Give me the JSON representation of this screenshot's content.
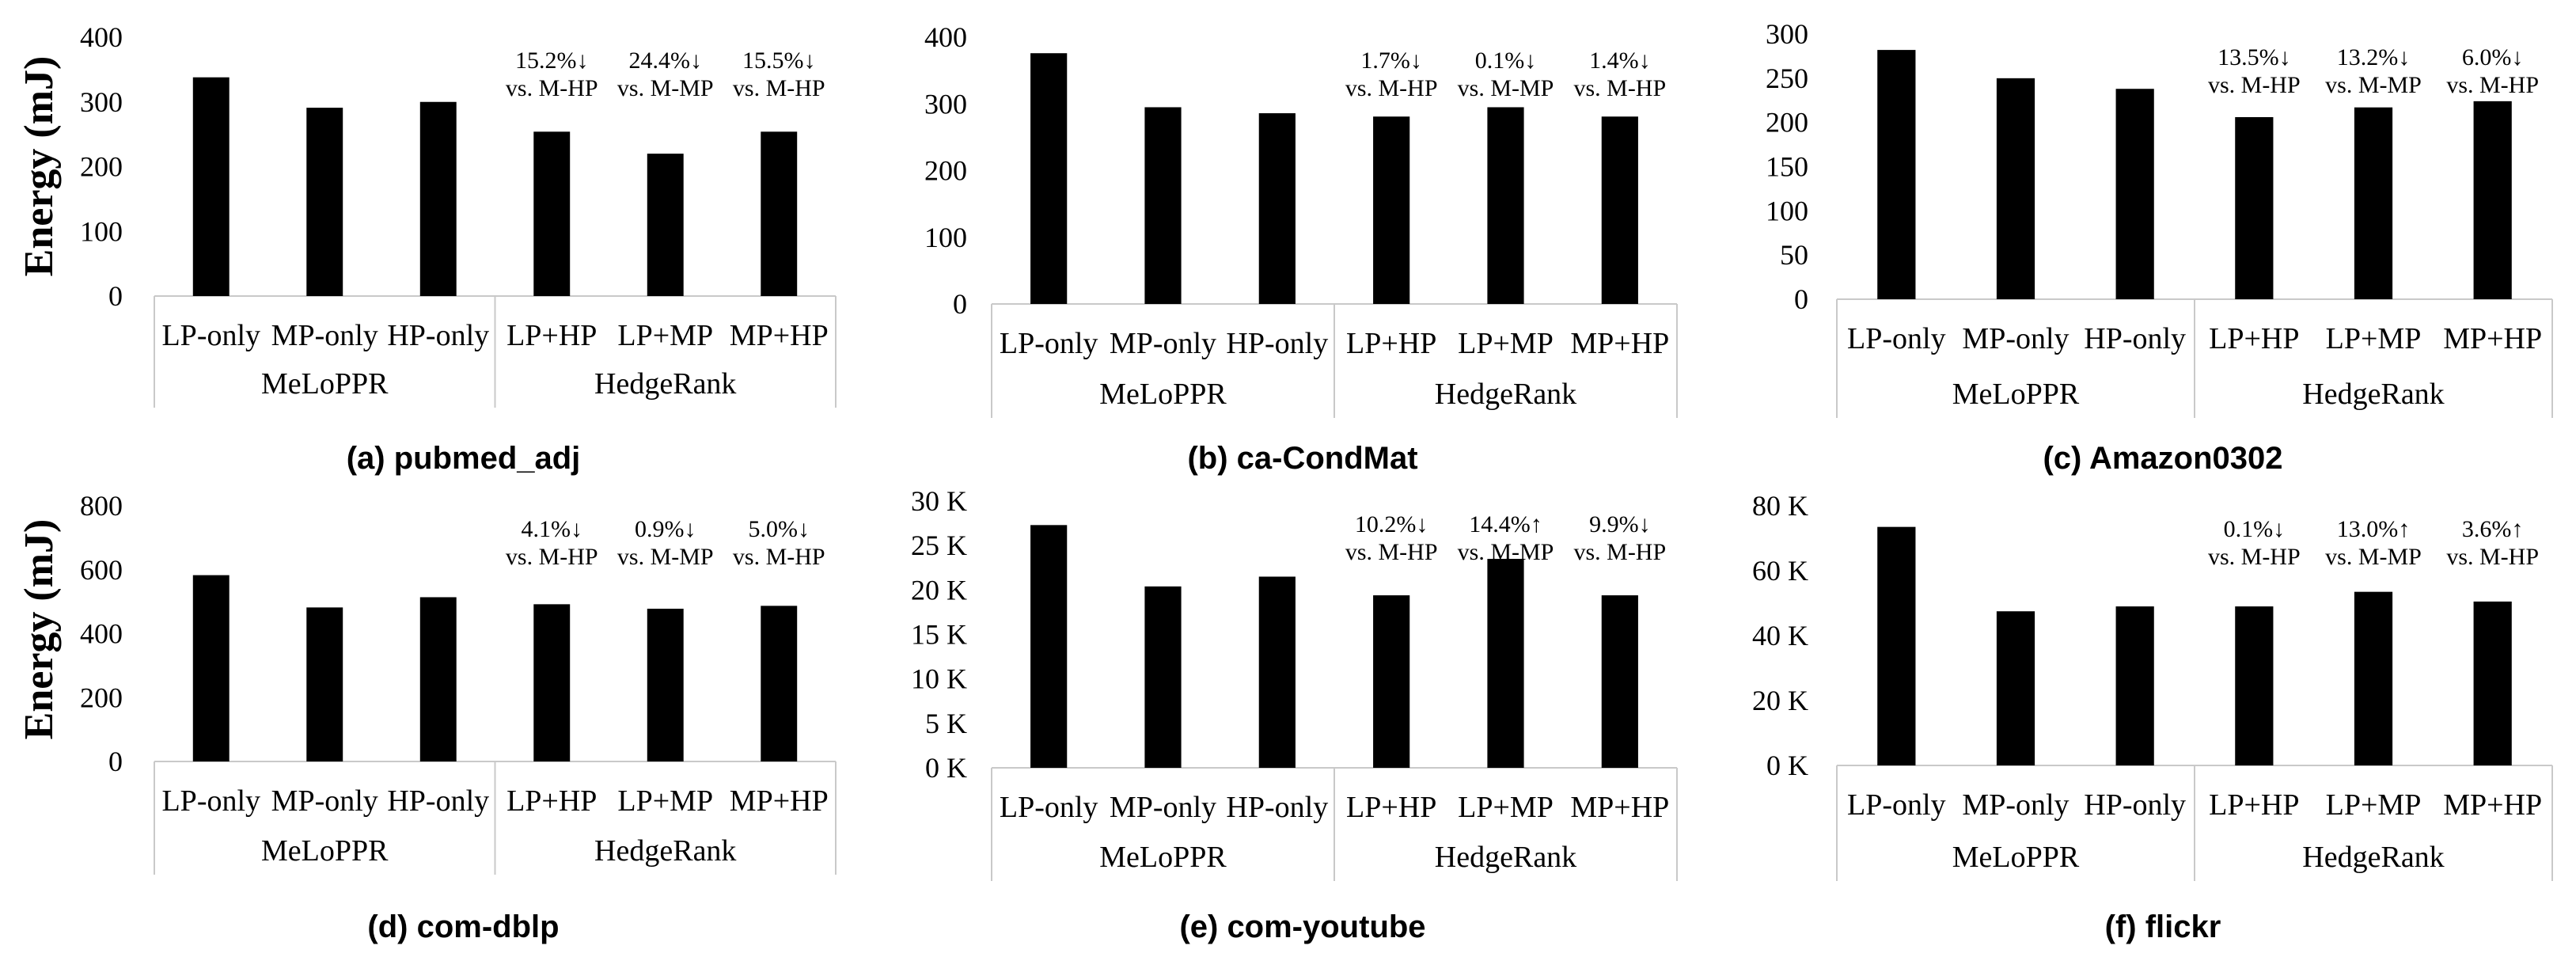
{
  "y_axis_label": "Energy (mJ)",
  "chart_data": [
    {
      "type": "bar",
      "caption": "(a) pubmed_adj",
      "categories": [
        "LP-only",
        "MP-only",
        "HP-only",
        "LP+HP",
        "LP+MP",
        "MP+HP"
      ],
      "groups": [
        {
          "label": "MeLoPPR",
          "count": 3
        },
        {
          "label": "HedgeRank",
          "count": 3
        }
      ],
      "values": [
        338,
        291,
        300,
        254,
        220,
        254
      ],
      "annotations": [
        {
          "index": 3,
          "line1": "15.2%↓",
          "line2": "vs. M-HP"
        },
        {
          "index": 4,
          "line1": "24.4%↓",
          "line2": "vs. M-MP"
        },
        {
          "index": 5,
          "line1": "15.5%↓",
          "line2": "vs. M-HP"
        }
      ],
      "ylim": [
        0,
        400
      ],
      "yticks": [
        0,
        100,
        200,
        300,
        400
      ],
      "ytick_labels": [
        "0",
        "100",
        "200",
        "300",
        "400"
      ],
      "gridlines": false
    },
    {
      "type": "bar",
      "caption": "(b) ca-CondMat",
      "categories": [
        "LP-only",
        "MP-only",
        "HP-only",
        "LP+HP",
        "LP+MP",
        "MP+HP"
      ],
      "groups": [
        {
          "label": "MeLoPPR",
          "count": 3
        },
        {
          "label": "HedgeRank",
          "count": 3
        }
      ],
      "values": [
        376,
        295,
        286,
        281,
        295,
        281
      ],
      "annotations": [
        {
          "index": 3,
          "line1": "1.7%↓",
          "line2": "vs. M-HP"
        },
        {
          "index": 4,
          "line1": "0.1%↓",
          "line2": "vs. M-MP"
        },
        {
          "index": 5,
          "line1": "1.4%↓",
          "line2": "vs. M-HP"
        }
      ],
      "ylim": [
        0,
        400
      ],
      "yticks": [
        0,
        100,
        200,
        300,
        400
      ],
      "ytick_labels": [
        "0",
        "100",
        "200",
        "300",
        "400"
      ],
      "gridlines": false
    },
    {
      "type": "bar",
      "caption": "(c) Amazon0302",
      "categories": [
        "LP-only",
        "MP-only",
        "HP-only",
        "LP+HP",
        "LP+MP",
        "MP+HP"
      ],
      "groups": [
        {
          "label": "MeLoPPR",
          "count": 3
        },
        {
          "label": "HedgeRank",
          "count": 3
        }
      ],
      "values": [
        282,
        250,
        238,
        206,
        217,
        224
      ],
      "annotations": [
        {
          "index": 3,
          "line1": "13.5%↓",
          "line2": "vs. M-HP"
        },
        {
          "index": 4,
          "line1": "13.2%↓",
          "line2": "vs. M-MP"
        },
        {
          "index": 5,
          "line1": "6.0%↓",
          "line2": "vs. M-HP"
        }
      ],
      "ylim": [
        0,
        300
      ],
      "yticks": [
        0,
        50,
        100,
        150,
        200,
        250,
        300
      ],
      "ytick_labels": [
        "0",
        "50",
        "100",
        "150",
        "200",
        "250",
        "300"
      ],
      "gridlines": false
    },
    {
      "type": "bar",
      "caption": "(d) com-dblp",
      "categories": [
        "LP-only",
        "MP-only",
        "HP-only",
        "LP+HP",
        "LP+MP",
        "MP+HP"
      ],
      "groups": [
        {
          "label": "MeLoPPR",
          "count": 3
        },
        {
          "label": "HedgeRank",
          "count": 3
        }
      ],
      "values": [
        583,
        482,
        514,
        492,
        478,
        487
      ],
      "annotations": [
        {
          "index": 3,
          "line1": "4.1%↓",
          "line2": "vs. M-HP"
        },
        {
          "index": 4,
          "line1": "0.9%↓",
          "line2": "vs. M-MP"
        },
        {
          "index": 5,
          "line1": "5.0%↓",
          "line2": "vs. M-HP"
        }
      ],
      "ylim": [
        0,
        800
      ],
      "yticks": [
        0,
        200,
        400,
        600,
        800
      ],
      "ytick_labels": [
        "0",
        "200",
        "400",
        "600",
        "800"
      ],
      "gridlines": false
    },
    {
      "type": "bar",
      "caption": "(e) com-youtube",
      "categories": [
        "LP-only",
        "MP-only",
        "HP-only",
        "LP+HP",
        "LP+MP",
        "MP+HP"
      ],
      "groups": [
        {
          "label": "MeLoPPR",
          "count": 3
        },
        {
          "label": "HedgeRank",
          "count": 3
        }
      ],
      "values": [
        27300,
        20400,
        21500,
        19400,
        23500,
        19400
      ],
      "annotations": [
        {
          "index": 3,
          "line1": "10.2%↓",
          "line2": "vs. M-HP"
        },
        {
          "index": 4,
          "line1": "14.4%↑",
          "line2": "vs. M-MP"
        },
        {
          "index": 5,
          "line1": "9.9%↓",
          "line2": "vs. M-HP"
        }
      ],
      "ylim": [
        0,
        30000
      ],
      "yticks": [
        0,
        5000,
        10000,
        15000,
        20000,
        25000,
        30000
      ],
      "ytick_labels": [
        "0 K",
        "5 K",
        "10 K",
        "15 K",
        "20 K",
        "25 K",
        "30 K"
      ],
      "gridlines": false
    },
    {
      "type": "bar",
      "caption": "(f) flickr",
      "categories": [
        "LP-only",
        "MP-only",
        "HP-only",
        "LP+HP",
        "LP+MP",
        "MP+HP"
      ],
      "groups": [
        {
          "label": "MeLoPPR",
          "count": 3
        },
        {
          "label": "HedgeRank",
          "count": 3
        }
      ],
      "values": [
        73500,
        47500,
        49000,
        49000,
        53500,
        50500
      ],
      "annotations": [
        {
          "index": 3,
          "line1": "0.1%↓",
          "line2": "vs. M-HP"
        },
        {
          "index": 4,
          "line1": "13.0%↑",
          "line2": "vs. M-MP"
        },
        {
          "index": 5,
          "line1": "3.6%↑",
          "line2": "vs. M-HP"
        }
      ],
      "ylim": [
        0,
        80000
      ],
      "yticks": [
        0,
        20000,
        40000,
        60000,
        80000
      ],
      "ytick_labels": [
        "0 K",
        "20 K",
        "40 K",
        "60 K",
        "80 K"
      ],
      "gridlines": false
    }
  ]
}
